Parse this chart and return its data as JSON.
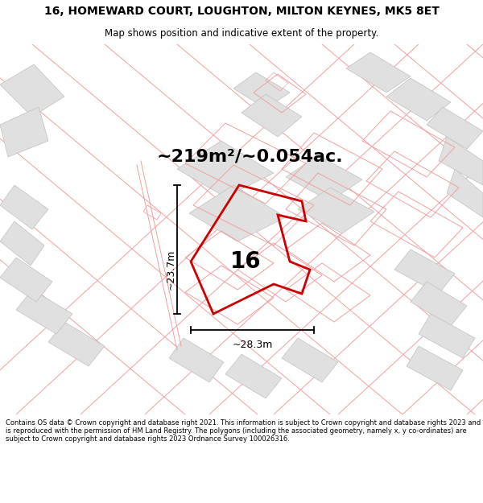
{
  "title_line1": "16, HOMEWARD COURT, LOUGHTON, MILTON KEYNES, MK5 8ET",
  "title_line2": "Map shows position and indicative extent of the property.",
  "area_label": "~219m²/~0.054ac.",
  "property_number": "16",
  "dim_width": "~28.3m",
  "dim_height": "~23.7m",
  "footer": "Contains OS data © Crown copyright and database right 2021. This information is subject to Crown copyright and database rights 2023 and is reproduced with the permission of HM Land Registry. The polygons (including the associated geometry, namely x, y co-ordinates) are subject to Crown copyright and database rights 2023 Ordnance Survey 100026316.",
  "bg_color": "#ffffff",
  "plot_color": "#cc0000",
  "neighbor_outline_color": "#f0a0a0",
  "gray_fill": "#e0e0e0",
  "gray_outline": "#c0c0c0",
  "text_color": "#000000",
  "title_fontsize": 10,
  "subtitle_fontsize": 8.5,
  "area_fontsize": 16,
  "number_fontsize": 20,
  "dim_fontsize": 9
}
